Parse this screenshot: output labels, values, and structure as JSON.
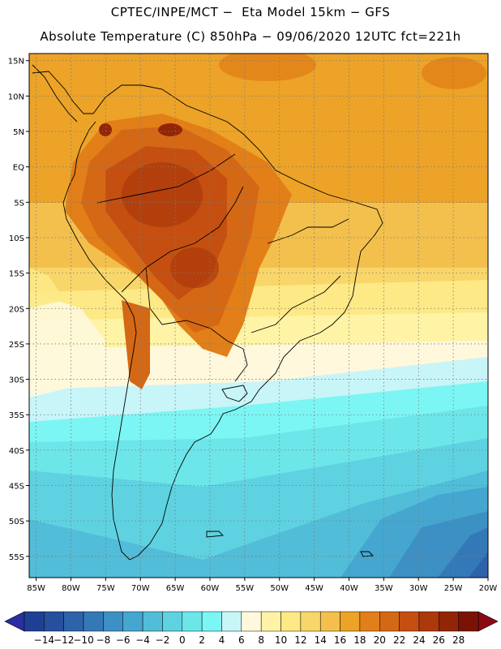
{
  "header": {
    "line1": "CPTEC/INPE/MCT −  Eta Model 15km − GFS",
    "line2": "Absolute Temperature (C) 850hPa − 09/06/2020 12UTC fct=221h"
  },
  "map": {
    "lat_labels": [
      "15N",
      "10N",
      "5N",
      "EQ",
      "5S",
      "10S",
      "15S",
      "20S",
      "25S",
      "30S",
      "35S",
      "40S",
      "45S",
      "50S",
      "55S"
    ],
    "lon_labels": [
      "85W",
      "80W",
      "75W",
      "70W",
      "65W",
      "60W",
      "55W",
      "50W",
      "45W",
      "40W",
      "35W",
      "30W",
      "25W",
      "20W"
    ],
    "lat_values": [
      15,
      10,
      5,
      0,
      -5,
      -10,
      -15,
      -20,
      -25,
      -30,
      -35,
      -40,
      -45,
      -50,
      -55
    ],
    "lon_values": [
      -85,
      -80,
      -75,
      -70,
      -65,
      -60,
      -55,
      -50,
      -45,
      -40,
      -35,
      -30,
      -25,
      -20
    ],
    "extent": {
      "lon_min": -86,
      "lon_max": -20,
      "lat_min": -58,
      "lat_max": 16
    }
  },
  "colorbar": {
    "levels": [
      "-14",
      "-12",
      "-10",
      "-8",
      "-6",
      "-4",
      "-2",
      "0",
      "2",
      "4",
      "6",
      "8",
      "10",
      "12",
      "14",
      "16",
      "18",
      "20",
      "22",
      "24",
      "26",
      "28"
    ],
    "colors": [
      "#1f3f95",
      "#264f9e",
      "#2d63aa",
      "#3479b7",
      "#3c90c4",
      "#45a7cf",
      "#52bdd8",
      "#5fd2e1",
      "#6de6ea",
      "#7cf6f4",
      "#c8f5f8",
      "#fff8dc",
      "#fff3a5",
      "#fde985",
      "#f8d66a",
      "#f3c04e",
      "#eca327",
      "#e27f18",
      "#d56815",
      "#c44f10",
      "#ad390b",
      "#932507",
      "#7a1306"
    ],
    "under_color": "#2a2fa0",
    "over_color": "#8a0a14"
  }
}
